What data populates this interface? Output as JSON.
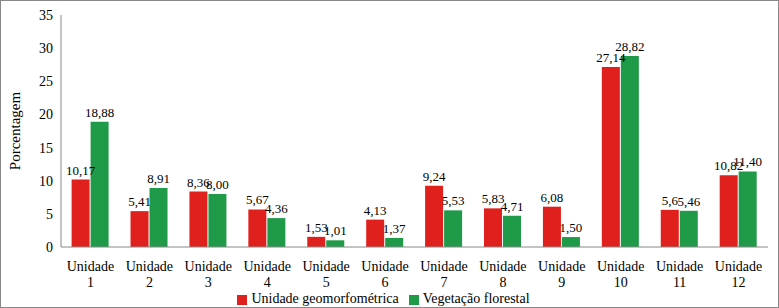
{
  "chart_data": {
    "type": "bar",
    "y_label": "Porcentagem",
    "categories": [
      "Unidade 1",
      "Unidade 2",
      "Unidade 3",
      "Unidade 4",
      "Unidade 5",
      "Unidade 6",
      "Unidade 7",
      "Unidade 8",
      "Unidade 9",
      "Unidade 10",
      "Unidade 11",
      "Unidade 12"
    ],
    "series": [
      {
        "name": "Unidade geomorfométrica",
        "color": "#e0201c",
        "values": [
          10.17,
          5.41,
          8.36,
          5.67,
          1.53,
          4.13,
          9.24,
          5.83,
          6.08,
          27.14,
          5.6,
          10.82
        ],
        "value_labels": [
          "10,17",
          "5,41",
          "8,36",
          "5,67",
          "1,53",
          "4,13",
          "9,24",
          "5,83",
          "6,08",
          "27,14",
          "5,6",
          "10,82"
        ]
      },
      {
        "name": "Vegetação florestal",
        "color": "#1f9a48",
        "values": [
          18.88,
          8.91,
          8.0,
          4.36,
          1.01,
          1.37,
          5.53,
          4.71,
          1.5,
          28.82,
          5.46,
          11.4
        ],
        "value_labels": [
          "18,88",
          "8,91",
          "8,00",
          "4,36",
          "1,01",
          "1,37",
          "5,53",
          "4,71",
          "1,50",
          "28,82",
          "5,46",
          "11,40"
        ]
      }
    ],
    "ylim": [
      0,
      35
    ],
    "yticks": [
      0,
      5,
      10,
      15,
      20,
      25,
      30,
      35
    ],
    "grid": false,
    "legend": "bottom",
    "data_labels": true
  }
}
